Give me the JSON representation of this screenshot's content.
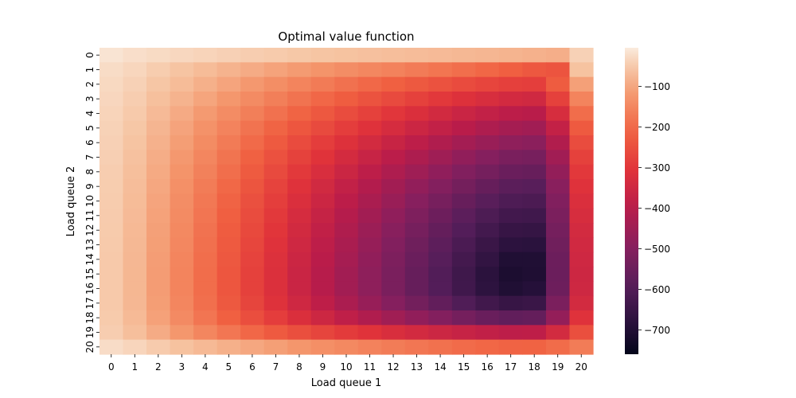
{
  "chart_data": {
    "type": "heatmap",
    "title": "Optimal value function",
    "xlabel": "Load queue 1",
    "ylabel": "Load queue 2",
    "x": [
      "0",
      "1",
      "2",
      "3",
      "4",
      "5",
      "6",
      "7",
      "8",
      "9",
      "10",
      "11",
      "12",
      "13",
      "14",
      "15",
      "16",
      "17",
      "18",
      "19",
      "20"
    ],
    "y": [
      "0",
      "1",
      "2",
      "3",
      "4",
      "5",
      "6",
      "7",
      "8",
      "9",
      "10",
      "11",
      "12",
      "13",
      "14",
      "15",
      "16",
      "17",
      "18",
      "19",
      "20"
    ],
    "colorscale": "rocket",
    "value_range": [
      -760,
      -5
    ],
    "colorbar_ticks": [
      "−100",
      "−200",
      "−300",
      "−400",
      "−500",
      "−600",
      "−700"
    ],
    "colorbar_tick_values": [
      -100,
      -200,
      -300,
      -400,
      -500,
      -600,
      -700
    ],
    "values": [
      [
        -14,
        -22,
        -27,
        -32,
        -36,
        -41,
        -45,
        -49,
        -53,
        -57,
        -60,
        -63,
        -66,
        -69,
        -72,
        -75,
        -78,
        -81,
        -85,
        -89,
        -40
      ],
      [
        -26,
        -34,
        -46,
        -58,
        -70,
        -82,
        -94,
        -106,
        -117,
        -128,
        -139,
        -149,
        -159,
        -170,
        -181,
        -193,
        -205,
        -218,
        -232,
        -240,
        -60
      ],
      [
        -30,
        -40,
        -55,
        -70,
        -87,
        -104,
        -121,
        -138,
        -155,
        -171,
        -187,
        -202,
        -216,
        -231,
        -245,
        -258,
        -270,
        -280,
        -285,
        -225,
        -110
      ],
      [
        -33,
        -45,
        -64,
        -83,
        -103,
        -123,
        -143,
        -164,
        -184,
        -204,
        -223,
        -242,
        -260,
        -278,
        -296,
        -313,
        -328,
        -341,
        -348,
        -278,
        -155
      ],
      [
        -36,
        -50,
        -72,
        -95,
        -118,
        -141,
        -164,
        -187,
        -210,
        -233,
        -256,
        -278,
        -300,
        -321,
        -342,
        -361,
        -378,
        -392,
        -399,
        -330,
        -195
      ],
      [
        -39,
        -54,
        -79,
        -105,
        -131,
        -157,
        -184,
        -210,
        -236,
        -261,
        -286,
        -310,
        -334,
        -357,
        -379,
        -400,
        -420,
        -438,
        -446,
        -376,
        -228
      ],
      [
        -41,
        -58,
        -85,
        -113,
        -142,
        -171,
        -200,
        -229,
        -258,
        -286,
        -313,
        -340,
        -366,
        -391,
        -416,
        -440,
        -462,
        -481,
        -488,
        -414,
        -256
      ],
      [
        -43,
        -62,
        -91,
        -121,
        -152,
        -183,
        -214,
        -246,
        -277,
        -307,
        -337,
        -367,
        -395,
        -423,
        -450,
        -476,
        -500,
        -521,
        -527,
        -446,
        -278
      ],
      [
        -45,
        -65,
        -96,
        -128,
        -160,
        -193,
        -227,
        -261,
        -294,
        -327,
        -359,
        -390,
        -421,
        -450,
        -479,
        -507,
        -532,
        -553,
        -558,
        -472,
        -296
      ],
      [
        -46,
        -68,
        -100,
        -134,
        -168,
        -203,
        -239,
        -274,
        -310,
        -344,
        -378,
        -411,
        -443,
        -474,
        -504,
        -534,
        -561,
        -583,
        -588,
        -492,
        -310
      ],
      [
        -47,
        -70,
        -104,
        -139,
        -175,
        -211,
        -248,
        -285,
        -322,
        -358,
        -394,
        -428,
        -462,
        -495,
        -527,
        -558,
        -587,
        -609,
        -613,
        -508,
        -322
      ],
      [
        -48,
        -72,
        -107,
        -143,
        -180,
        -218,
        -256,
        -295,
        -333,
        -371,
        -408,
        -444,
        -479,
        -513,
        -547,
        -580,
        -610,
        -633,
        -636,
        -520,
        -332
      ],
      [
        -49,
        -74,
        -110,
        -147,
        -185,
        -224,
        -263,
        -303,
        -342,
        -381,
        -419,
        -457,
        -493,
        -529,
        -564,
        -598,
        -630,
        -655,
        -658,
        -531,
        -340
      ],
      [
        -50,
        -75,
        -112,
        -150,
        -189,
        -229,
        -269,
        -310,
        -350,
        -390,
        -429,
        -467,
        -505,
        -542,
        -578,
        -614,
        -648,
        -676,
        -680,
        -540,
        -346
      ],
      [
        -51,
        -76,
        -114,
        -153,
        -193,
        -233,
        -274,
        -316,
        -357,
        -397,
        -437,
        -476,
        -515,
        -553,
        -590,
        -628,
        -665,
        -700,
        -700,
        -548,
        -351
      ],
      [
        -51,
        -77,
        -115,
        -155,
        -195,
        -236,
        -278,
        -320,
        -362,
        -403,
        -443,
        -483,
        -522,
        -561,
        -599,
        -638,
        -678,
        -710,
        -703,
        -551,
        -354
      ],
      [
        -51,
        -77,
        -115,
        -155,
        -195,
        -236,
        -278,
        -320,
        -362,
        -403,
        -443,
        -483,
        -522,
        -560,
        -598,
        -636,
        -674,
        -700,
        -690,
        -546,
        -352
      ],
      [
        -51,
        -76,
        -113,
        -152,
        -191,
        -231,
        -271,
        -311,
        -350,
        -389,
        -427,
        -464,
        -500,
        -535,
        -569,
        -603,
        -635,
        -655,
        -648,
        -520,
        -340
      ],
      [
        -49,
        -73,
        -108,
        -144,
        -180,
        -216,
        -252,
        -287,
        -321,
        -354,
        -386,
        -417,
        -447,
        -476,
        -504,
        -531,
        -555,
        -570,
        -565,
        -470,
        -310
      ],
      [
        -45,
        -65,
        -94,
        -123,
        -151,
        -178,
        -204,
        -228,
        -250,
        -271,
        -290,
        -308,
        -325,
        -341,
        -356,
        -370,
        -382,
        -390,
        -388,
        -340,
        -250
      ],
      [
        -25,
        -35,
        -48,
        -61,
        -74,
        -87,
        -100,
        -112,
        -124,
        -136,
        -147,
        -158,
        -168,
        -178,
        -188,
        -197,
        -205,
        -211,
        -212,
        -196,
        -168
      ]
    ]
  }
}
